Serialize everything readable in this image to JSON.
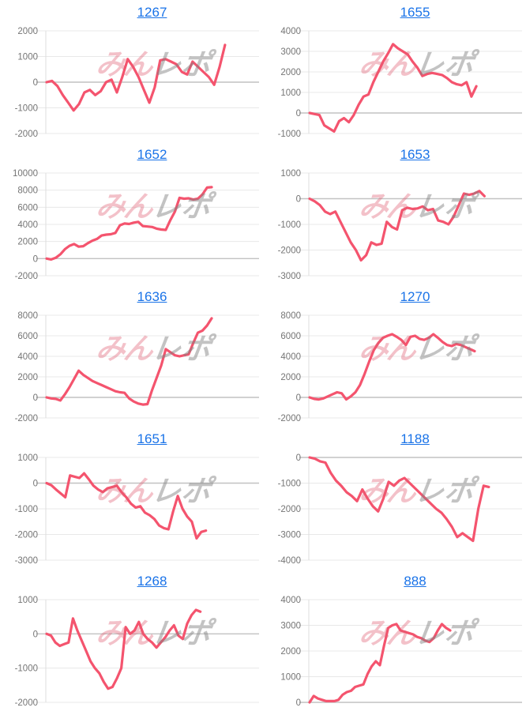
{
  "page": {
    "background": "#ffffff"
  },
  "style": {
    "line_color": "#f4546e",
    "link_color": "#1a73e8",
    "tick_label_color": "#757575",
    "grid_color": "#e8e8e8",
    "zero_line_color": "#c2c2c2",
    "axis_line_color": "#dedede",
    "watermark_pink_color": "rgba(224,93,114,0.38)",
    "watermark_gray_color": "rgba(130,130,130,0.48)"
  },
  "watermark": {
    "pink_text": "みん",
    "gray_text": "レポ"
  },
  "chart_data": [
    {
      "type": "line",
      "title": "1267",
      "xlabel": "",
      "ylabel": "",
      "ylim": [
        -2000,
        2000
      ],
      "yticks": [
        2000,
        1000,
        0,
        -1000,
        -2000
      ],
      "grid": true,
      "legend": "none",
      "x_slots": 40,
      "values": [
        0,
        50,
        -150,
        -500,
        -800,
        -1100,
        -850,
        -400,
        -300,
        -500,
        -350,
        0,
        100,
        -400,
        200,
        900,
        600,
        200,
        -300,
        -800,
        -200,
        850,
        900,
        800,
        700,
        400,
        300,
        800,
        600,
        400,
        200,
        -100,
        600,
        1450
      ]
    },
    {
      "type": "line",
      "title": "1655",
      "xlabel": "",
      "ylabel": "",
      "ylim": [
        -1000,
        4000
      ],
      "yticks": [
        4000,
        3000,
        2000,
        1000,
        0,
        -1000
      ],
      "grid": true,
      "legend": "none",
      "x_slots": 44,
      "values": [
        0,
        -50,
        -100,
        -600,
        -750,
        -900,
        -400,
        -250,
        -450,
        -100,
        400,
        800,
        900,
        1500,
        2000,
        2500,
        2900,
        3350,
        3150,
        3000,
        2850,
        2500,
        2200,
        1800,
        1900,
        1950,
        1900,
        1850,
        1700,
        1500,
        1400,
        1350,
        1500,
        800,
        1300
      ]
    },
    {
      "type": "line",
      "title": "1652",
      "xlabel": "",
      "ylabel": "",
      "ylim": [
        -2000,
        10000
      ],
      "yticks": [
        10000,
        8000,
        6000,
        4000,
        2000,
        0,
        -2000
      ],
      "grid": true,
      "legend": "none",
      "x_slots": 47,
      "values": [
        0,
        -100,
        100,
        500,
        1100,
        1500,
        1700,
        1400,
        1450,
        1800,
        2100,
        2300,
        2700,
        2800,
        2850,
        3000,
        3900,
        4100,
        4050,
        4200,
        4300,
        3800,
        3750,
        3700,
        3500,
        3400,
        3350,
        4500,
        5500,
        7100,
        7000,
        7050,
        6900,
        7000,
        7500,
        8300,
        8350
      ]
    },
    {
      "type": "line",
      "title": "1653",
      "xlabel": "",
      "ylabel": "",
      "ylim": [
        -3000,
        1000
      ],
      "yticks": [
        1000,
        0,
        -1000,
        -2000,
        -3000
      ],
      "grid": true,
      "legend": "none",
      "x_slots": 42,
      "values": [
        0,
        -100,
        -250,
        -500,
        -600,
        -500,
        -900,
        -1300,
        -1700,
        -2000,
        -2400,
        -2200,
        -1700,
        -1800,
        -1750,
        -900,
        -1100,
        -1200,
        -450,
        -350,
        -400,
        -380,
        -300,
        -450,
        -400,
        -850,
        -900,
        -1000,
        -700,
        -250,
        200,
        150,
        200,
        300,
        100
      ]
    },
    {
      "type": "line",
      "title": "1636",
      "xlabel": "",
      "ylabel": "",
      "ylim": [
        -2000,
        8000
      ],
      "yticks": [
        8000,
        6000,
        4000,
        2000,
        0,
        -2000
      ],
      "grid": true,
      "legend": "none",
      "x_slots": 47,
      "values": [
        0,
        -100,
        -150,
        -300,
        300,
        1000,
        1800,
        2600,
        2200,
        1900,
        1600,
        1400,
        1200,
        1000,
        800,
        600,
        500,
        450,
        -100,
        -400,
        -600,
        -700,
        -650,
        700,
        1900,
        3100,
        4700,
        4400,
        4100,
        4000,
        4100,
        4200,
        5300,
        6300,
        6500,
        7000,
        7700
      ]
    },
    {
      "type": "line",
      "title": "1270",
      "xlabel": "",
      "ylabel": "",
      "ylim": [
        -2000,
        8000
      ],
      "yticks": [
        8000,
        6000,
        4000,
        2000,
        0,
        -2000
      ],
      "grid": true,
      "legend": "none",
      "x_slots": 47,
      "values": [
        0,
        -150,
        -200,
        -100,
        100,
        300,
        500,
        400,
        -200,
        100,
        500,
        1200,
        2300,
        3500,
        4600,
        5300,
        5800,
        6000,
        6150,
        5900,
        5600,
        5100,
        5900,
        6000,
        5700,
        5600,
        5800,
        6150,
        5800,
        5400,
        5100,
        5000,
        5200,
        5100,
        4900,
        4700,
        4500
      ]
    },
    {
      "type": "line",
      "title": "1651",
      "xlabel": "",
      "ylabel": "",
      "ylim": [
        -3000,
        1000
      ],
      "yticks": [
        1000,
        0,
        -1000,
        -2000,
        -3000
      ],
      "grid": true,
      "legend": "none",
      "x_slots": 46,
      "values": [
        0,
        -80,
        -250,
        -400,
        -550,
        300,
        250,
        200,
        380,
        150,
        -100,
        -250,
        -350,
        -200,
        -150,
        -100,
        -350,
        -550,
        -800,
        -950,
        -900,
        -1150,
        -1250,
        -1400,
        -1650,
        -1750,
        -1800,
        -1100,
        -500,
        -1000,
        -1300,
        -1500,
        -2150,
        -1900,
        -1850
      ]
    },
    {
      "type": "line",
      "title": "1188",
      "xlabel": "",
      "ylabel": "",
      "ylim": [
        -4000,
        0
      ],
      "yticks": [
        0,
        -1000,
        -2000,
        -3000,
        -4000
      ],
      "grid": true,
      "legend": "none",
      "x_slots": 41,
      "values": [
        0,
        -50,
        -150,
        -200,
        -600,
        -900,
        -1100,
        -1350,
        -1500,
        -1700,
        -1250,
        -1600,
        -1900,
        -2100,
        -1600,
        -950,
        -1100,
        -900,
        -800,
        -1000,
        -1200,
        -1400,
        -1600,
        -1800,
        -2000,
        -2150,
        -2400,
        -2700,
        -3100,
        -2950,
        -3100,
        -3250,
        -2000,
        -1100,
        -1150
      ]
    },
    {
      "type": "line",
      "title": "1268",
      "xlabel": "",
      "ylabel": "",
      "ylim": [
        -2000,
        1000
      ],
      "yticks": [
        1000,
        0,
        -1000,
        -2000
      ],
      "grid": true,
      "legend": "none",
      "x_slots": 49,
      "values": [
        0,
        -50,
        -250,
        -350,
        -300,
        -250,
        450,
        100,
        -200,
        -500,
        -800,
        -1000,
        -1150,
        -1400,
        -1600,
        -1550,
        -1300,
        -1000,
        200,
        0,
        100,
        350,
        0,
        -150,
        -250,
        -400,
        -250,
        -100,
        100,
        250,
        -50,
        -150,
        300,
        550,
        700,
        650
      ]
    },
    {
      "type": "line",
      "title": "888",
      "xlabel": "",
      "ylabel": "",
      "ylim": [
        0,
        4000
      ],
      "yticks": [
        4000,
        3000,
        2000,
        1000,
        0
      ],
      "grid": true,
      "legend": "none",
      "x_slots": 52,
      "values": [
        0,
        250,
        150,
        100,
        50,
        50,
        50,
        100,
        300,
        400,
        450,
        600,
        650,
        700,
        1100,
        1400,
        1600,
        1450,
        2200,
        2900,
        3000,
        3050,
        2800,
        2750,
        2700,
        2650,
        2550,
        2500,
        2400,
        2350,
        2500,
        2800,
        3050,
        2900,
        2800
      ]
    }
  ]
}
